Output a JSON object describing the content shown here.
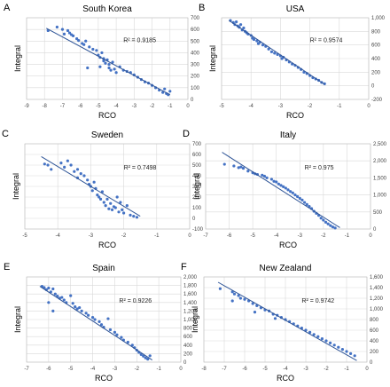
{
  "chart_data": [
    {
      "panel": "A",
      "type": "scatter",
      "title": "South Korea",
      "xlabel": "RCO",
      "ylabel": "Integral",
      "r2_label": "R² = 0.9185",
      "xlim": [
        -9,
        0
      ],
      "ylim": [
        0,
        700
      ],
      "xticks": [
        -9,
        -8,
        -7,
        -6,
        -5,
        -4,
        -3,
        -2,
        -1,
        0
      ],
      "yticks": [
        0,
        100,
        200,
        300,
        400,
        500,
        600,
        700
      ],
      "ytick_labels": [
        "0",
        "100",
        "200",
        "300",
        "400",
        "500",
        "600",
        "700"
      ],
      "grid": true,
      "series_color": "#4472c4",
      "trendline": [
        [
          -7.9,
          610
        ],
        [
          -1.0,
          40
        ]
      ],
      "points": [
        [
          -7.8,
          590
        ],
        [
          -7.3,
          620
        ],
        [
          -7.0,
          600
        ],
        [
          -6.9,
          560
        ],
        [
          -6.7,
          590
        ],
        [
          -6.6,
          570
        ],
        [
          -6.5,
          555
        ],
        [
          -6.4,
          545
        ],
        [
          -6.2,
          520
        ],
        [
          -6.1,
          505
        ],
        [
          -5.9,
          480
        ],
        [
          -5.8,
          470
        ],
        [
          -5.7,
          500
        ],
        [
          -5.5,
          450
        ],
        [
          -5.3,
          430
        ],
        [
          -5.1,
          420
        ],
        [
          -5.0,
          380
        ],
        [
          -4.9,
          360
        ],
        [
          -4.8,
          400
        ],
        [
          -4.7,
          350
        ],
        [
          -4.7,
          330
        ],
        [
          -4.6,
          310
        ],
        [
          -4.5,
          340
        ],
        [
          -4.4,
          300
        ],
        [
          -4.4,
          270
        ],
        [
          -4.3,
          250
        ],
        [
          -4.2,
          320
        ],
        [
          -4.1,
          260
        ],
        [
          -4.0,
          230
        ],
        [
          -3.8,
          280
        ],
        [
          -3.6,
          250
        ],
        [
          -3.4,
          240
        ],
        [
          -3.2,
          230
        ],
        [
          -3.0,
          210
        ],
        [
          -2.8,
          190
        ],
        [
          -2.6,
          170
        ],
        [
          -2.4,
          150
        ],
        [
          -2.2,
          140
        ],
        [
          -2.0,
          120
        ],
        [
          -1.8,
          100
        ],
        [
          -1.6,
          80
        ],
        [
          -1.4,
          60
        ],
        [
          -1.3,
          90
        ],
        [
          -1.2,
          50
        ],
        [
          -1.1,
          40
        ],
        [
          -1.0,
          70
        ],
        [
          -5.6,
          270
        ],
        [
          -4.9,
          280
        ]
      ]
    },
    {
      "panel": "B",
      "type": "scatter",
      "title": "USA",
      "xlabel": "RCO",
      "ylabel": "Integral",
      "r2_label": "R² = 0.9574",
      "xlim": [
        -5,
        0
      ],
      "ylim": [
        -200,
        1000
      ],
      "xticks": [
        -5,
        -4,
        -3,
        -2,
        -1,
        0
      ],
      "yticks": [
        -200,
        0,
        200,
        400,
        600,
        800,
        1000
      ],
      "ytick_labels": [
        "-200",
        "0",
        "200",
        "400",
        "600",
        "800",
        "1,000"
      ],
      "grid": true,
      "series_color": "#4472c4",
      "trendline": [
        [
          -4.75,
          960
        ],
        [
          -1.5,
          20
        ]
      ],
      "points": [
        [
          -4.7,
          960
        ],
        [
          -4.6,
          930
        ],
        [
          -4.55,
          900
        ],
        [
          -4.5,
          940
        ],
        [
          -4.45,
          880
        ],
        [
          -4.4,
          860
        ],
        [
          -4.35,
          900
        ],
        [
          -4.3,
          820
        ],
        [
          -4.25,
          850
        ],
        [
          -4.2,
          800
        ],
        [
          -4.15,
          780
        ],
        [
          -4.1,
          760
        ],
        [
          -4.0,
          740
        ],
        [
          -3.95,
          700
        ],
        [
          -3.9,
          680
        ],
        [
          -3.8,
          660
        ],
        [
          -3.75,
          620
        ],
        [
          -3.7,
          640
        ],
        [
          -3.6,
          600
        ],
        [
          -3.5,
          580
        ],
        [
          -3.4,
          540
        ],
        [
          -3.3,
          500
        ],
        [
          -3.2,
          480
        ],
        [
          -3.1,
          460
        ],
        [
          -3.0,
          440
        ],
        [
          -2.95,
          400
        ],
        [
          -2.9,
          420
        ],
        [
          -2.8,
          380
        ],
        [
          -2.7,
          350
        ],
        [
          -2.6,
          320
        ],
        [
          -2.5,
          300
        ],
        [
          -2.4,
          270
        ],
        [
          -2.3,
          240
        ],
        [
          -2.2,
          200
        ],
        [
          -2.1,
          180
        ],
        [
          -2.0,
          150
        ],
        [
          -1.9,
          120
        ],
        [
          -1.8,
          100
        ],
        [
          -1.7,
          80
        ],
        [
          -1.6,
          50
        ],
        [
          -1.5,
          30
        ]
      ]
    },
    {
      "panel": "C",
      "type": "scatter",
      "title": "Sweden",
      "xlabel": "RCO",
      "ylabel": "Integral",
      "r2_label": "R² = 0.7498",
      "xlim": [
        -5,
        0
      ],
      "ylim": [
        -100,
        700
      ],
      "xticks": [
        -5,
        -4,
        -3,
        -2,
        -1,
        0
      ],
      "yticks": [
        -100,
        0,
        100,
        200,
        300,
        400,
        500,
        600,
        700
      ],
      "ytick_labels": [
        "-100",
        "0",
        "100",
        "200",
        "300",
        "400",
        "500",
        "600",
        "700"
      ],
      "grid": true,
      "series_color": "#4472c4",
      "trendline": [
        [
          -4.5,
          580
        ],
        [
          -1.5,
          20
        ]
      ],
      "points": [
        [
          -4.4,
          510
        ],
        [
          -4.3,
          500
        ],
        [
          -4.2,
          460
        ],
        [
          -3.9,
          520
        ],
        [
          -3.8,
          480
        ],
        [
          -3.7,
          540
        ],
        [
          -3.6,
          500
        ],
        [
          -3.5,
          440
        ],
        [
          -3.4,
          460
        ],
        [
          -3.4,
          380
        ],
        [
          -3.3,
          420
        ],
        [
          -3.2,
          400
        ],
        [
          -3.1,
          360
        ],
        [
          -3.05,
          320
        ],
        [
          -3.0,
          300
        ],
        [
          -2.95,
          260
        ],
        [
          -2.9,
          340
        ],
        [
          -2.85,
          280
        ],
        [
          -2.8,
          220
        ],
        [
          -2.75,
          200
        ],
        [
          -2.7,
          180
        ],
        [
          -2.65,
          250
        ],
        [
          -2.6,
          150
        ],
        [
          -2.55,
          120
        ],
        [
          -2.5,
          180
        ],
        [
          -2.45,
          90
        ],
        [
          -2.4,
          140
        ],
        [
          -2.35,
          80
        ],
        [
          -2.3,
          110
        ],
        [
          -2.25,
          100
        ],
        [
          -2.2,
          200
        ],
        [
          -2.15,
          60
        ],
        [
          -2.1,
          150
        ],
        [
          -2.05,
          80
        ],
        [
          -2.0,
          50
        ],
        [
          -1.9,
          120
        ],
        [
          -1.8,
          30
        ],
        [
          -1.7,
          20
        ],
        [
          -1.6,
          10
        ]
      ]
    },
    {
      "panel": "D",
      "type": "scatter",
      "title": "Italy",
      "xlabel": "RCO",
      "ylabel": "Integral",
      "r2_label": "R² = 0.975",
      "xlim": [
        -7,
        0
      ],
      "ylim": [
        0,
        2500
      ],
      "xticks": [
        -7,
        -6,
        -5,
        -4,
        -3,
        -2,
        -1,
        0
      ],
      "yticks": [
        0,
        500,
        1000,
        1500,
        2000,
        2500
      ],
      "ytick_labels": [
        "0",
        "500",
        "1,000",
        "1,500",
        "2,000",
        "2,500"
      ],
      "grid": true,
      "series_color": "#4472c4",
      "trendline": [
        [
          -6.3,
          2250
        ],
        [
          -1.3,
          40
        ]
      ],
      "points": [
        [
          -6.2,
          1900
        ],
        [
          -5.8,
          1850
        ],
        [
          -5.6,
          1800
        ],
        [
          -5.5,
          1820
        ],
        [
          -5.4,
          1780
        ],
        [
          -5.2,
          1700
        ],
        [
          -5.0,
          1650
        ],
        [
          -4.9,
          1620
        ],
        [
          -4.8,
          1600
        ],
        [
          -4.6,
          1580
        ],
        [
          -4.5,
          1550
        ],
        [
          -4.4,
          1500
        ],
        [
          -4.2,
          1460
        ],
        [
          -4.1,
          1400
        ],
        [
          -4.0,
          1380
        ],
        [
          -3.9,
          1320
        ],
        [
          -3.8,
          1280
        ],
        [
          -3.7,
          1240
        ],
        [
          -3.6,
          1200
        ],
        [
          -3.5,
          1150
        ],
        [
          -3.4,
          1100
        ],
        [
          -3.3,
          1060
        ],
        [
          -3.2,
          1000
        ],
        [
          -3.1,
          950
        ],
        [
          -3.0,
          900
        ],
        [
          -2.9,
          850
        ],
        [
          -2.8,
          780
        ],
        [
          -2.7,
          720
        ],
        [
          -2.6,
          660
        ],
        [
          -2.5,
          600
        ],
        [
          -2.4,
          520
        ],
        [
          -2.3,
          460
        ],
        [
          -2.2,
          400
        ],
        [
          -2.1,
          320
        ],
        [
          -2.0,
          260
        ],
        [
          -1.9,
          200
        ],
        [
          -1.8,
          150
        ],
        [
          -1.7,
          100
        ],
        [
          -1.6,
          60
        ],
        [
          -1.5,
          30
        ]
      ]
    },
    {
      "panel": "E",
      "type": "scatter",
      "title": "Spain",
      "xlabel": "RCO",
      "ylabel": "Integral",
      "r2_label": "R² = 0.9226",
      "xlim": [
        -7,
        0
      ],
      "ylim": [
        0,
        2000
      ],
      "xticks": [
        -7,
        -6,
        -5,
        -4,
        -3,
        -2,
        -1,
        0
      ],
      "yticks": [
        0,
        200,
        400,
        600,
        800,
        1000,
        1200,
        1400,
        1600,
        1800,
        2000
      ],
      "ytick_labels": [
        "0",
        "200",
        "400",
        "600",
        "800",
        "1,000",
        "1,200",
        "1,400",
        "1,600",
        "1,800",
        "2,000"
      ],
      "grid": true,
      "series_color": "#4472c4",
      "trendline": [
        [
          -6.4,
          1780
        ],
        [
          -1.3,
          50
        ]
      ],
      "points": [
        [
          -6.3,
          1780
        ],
        [
          -6.2,
          1750
        ],
        [
          -6.1,
          1700
        ],
        [
          -6.0,
          1740
        ],
        [
          -5.9,
          1650
        ],
        [
          -5.8,
          1720
        ],
        [
          -5.7,
          1600
        ],
        [
          -5.6,
          1550
        ],
        [
          -5.5,
          1500
        ],
        [
          -5.4,
          1520
        ],
        [
          -5.3,
          1460
        ],
        [
          -5.2,
          1400
        ],
        [
          -5.0,
          1560
        ],
        [
          -4.9,
          1380
        ],
        [
          -4.8,
          1300
        ],
        [
          -4.7,
          1250
        ],
        [
          -4.6,
          1280
        ],
        [
          -4.5,
          1200
        ],
        [
          -4.3,
          1150
        ],
        [
          -4.2,
          1100
        ],
        [
          -4.0,
          1050
        ],
        [
          -3.9,
          1000
        ],
        [
          -3.7,
          950
        ],
        [
          -3.6,
          880
        ],
        [
          -3.5,
          820
        ],
        [
          -3.3,
          1020
        ],
        [
          -3.2,
          760
        ],
        [
          -3.0,
          700
        ],
        [
          -2.9,
          640
        ],
        [
          -2.7,
          580
        ],
        [
          -2.6,
          520
        ],
        [
          -2.4,
          470
        ],
        [
          -2.2,
          400
        ],
        [
          -2.1,
          340
        ],
        [
          -2.0,
          280
        ],
        [
          -1.9,
          230
        ],
        [
          -1.8,
          180
        ],
        [
          -1.7,
          140
        ],
        [
          -1.6,
          100
        ],
        [
          -1.5,
          70
        ],
        [
          -1.4,
          150
        ],
        [
          -6.0,
          1400
        ],
        [
          -5.8,
          1200
        ]
      ]
    },
    {
      "panel": "F",
      "type": "scatter",
      "title": "New Zealand",
      "xlabel": "RCO",
      "ylabel": "Integral",
      "r2_label": "R² = 0.9742",
      "xlim": [
        -8,
        0
      ],
      "ylim": [
        0,
        1600
      ],
      "xticks": [
        -8,
        -7,
        -6,
        -5,
        -4,
        -3,
        -2,
        -1,
        0
      ],
      "yticks": [
        0,
        200,
        400,
        600,
        800,
        1000,
        1200,
        1400,
        1600
      ],
      "ytick_labels": [
        "0",
        "200",
        "400",
        "600",
        "800",
        "1,000",
        "1,200",
        "1,400",
        "1,600"
      ],
      "grid": true,
      "series_color": "#4472c4",
      "trendline": [
        [
          -7.3,
          1500
        ],
        [
          -0.5,
          30
        ]
      ],
      "points": [
        [
          -7.2,
          1380
        ],
        [
          -6.6,
          1320
        ],
        [
          -6.5,
          1280
        ],
        [
          -6.3,
          1250
        ],
        [
          -6.2,
          1200
        ],
        [
          -6.0,
          1180
        ],
        [
          -5.8,
          1150
        ],
        [
          -5.6,
          1100
        ],
        [
          -5.4,
          1060
        ],
        [
          -5.2,
          1020
        ],
        [
          -5.0,
          980
        ],
        [
          -4.8,
          960
        ],
        [
          -4.6,
          900
        ],
        [
          -4.4,
          880
        ],
        [
          -4.2,
          840
        ],
        [
          -4.0,
          800
        ],
        [
          -3.8,
          760
        ],
        [
          -3.6,
          720
        ],
        [
          -3.4,
          680
        ],
        [
          -3.2,
          640
        ],
        [
          -3.0,
          600
        ],
        [
          -2.8,
          560
        ],
        [
          -2.6,
          520
        ],
        [
          -2.4,
          480
        ],
        [
          -2.2,
          440
        ],
        [
          -2.0,
          400
        ],
        [
          -1.8,
          360
        ],
        [
          -1.6,
          320
        ],
        [
          -1.4,
          280
        ],
        [
          -1.2,
          240
        ],
        [
          -1.0,
          200
        ],
        [
          -0.8,
          160
        ],
        [
          -0.6,
          120
        ],
        [
          -6.6,
          1150
        ],
        [
          -5.5,
          940
        ],
        [
          -4.5,
          820
        ]
      ]
    }
  ]
}
